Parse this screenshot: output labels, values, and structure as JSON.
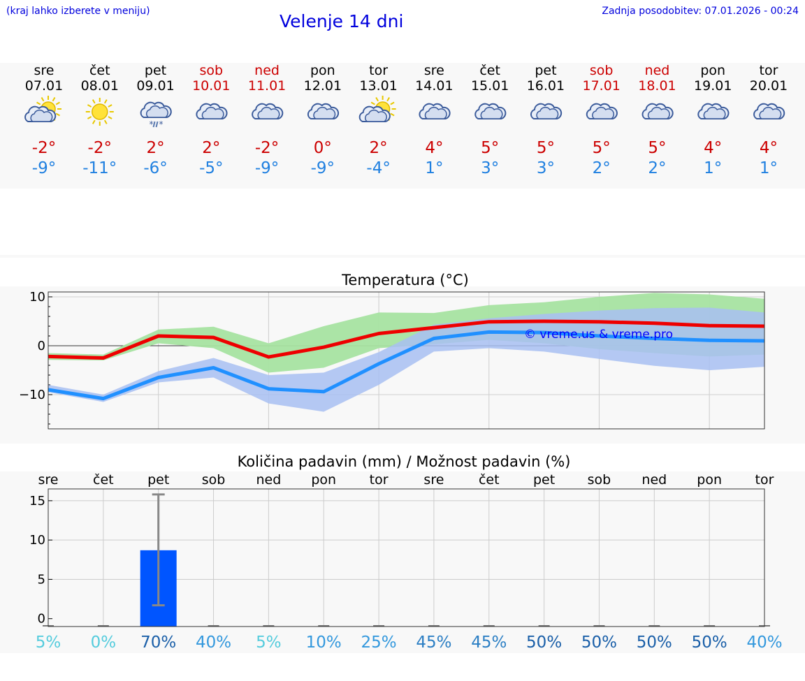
{
  "header": {
    "location_hint": "(kraj lahko izberete v meniju)",
    "title": "Velenje 14 dni",
    "updated": "Zadnja posodobitev: 07.01.2026 - 00:24"
  },
  "days": [
    {
      "name": "sre",
      "date": "07.01",
      "icon": "sun-cloud-icon",
      "tmax": "-2°",
      "tmin": "-9°",
      "weekend": false
    },
    {
      "name": "čet",
      "date": "08.01",
      "icon": "sun-icon",
      "tmax": "-2°",
      "tmin": "-11°",
      "weekend": false
    },
    {
      "name": "pet",
      "date": "09.01",
      "icon": "cloud-snow-icon",
      "tmax": "2°",
      "tmin": "-6°",
      "weekend": false
    },
    {
      "name": "sob",
      "date": "10.01",
      "icon": "cloud-icon",
      "tmax": "2°",
      "tmin": "-5°",
      "weekend": true
    },
    {
      "name": "ned",
      "date": "11.01",
      "icon": "cloud-icon",
      "tmax": "-2°",
      "tmin": "-9°",
      "weekend": true
    },
    {
      "name": "pon",
      "date": "12.01",
      "icon": "cloud-icon",
      "tmax": "0°",
      "tmin": "-9°",
      "weekend": false
    },
    {
      "name": "tor",
      "date": "13.01",
      "icon": "sun-cloud-icon",
      "tmax": "2°",
      "tmin": "-4°",
      "weekend": false
    },
    {
      "name": "sre",
      "date": "14.01",
      "icon": "cloud-icon",
      "tmax": "4°",
      "tmin": "1°",
      "weekend": false
    },
    {
      "name": "čet",
      "date": "15.01",
      "icon": "cloud-icon",
      "tmax": "5°",
      "tmin": "3°",
      "weekend": false
    },
    {
      "name": "pet",
      "date": "16.01",
      "icon": "cloud-icon",
      "tmax": "5°",
      "tmin": "3°",
      "weekend": false
    },
    {
      "name": "sob",
      "date": "17.01",
      "icon": "cloud-icon",
      "tmax": "5°",
      "tmin": "2°",
      "weekend": true
    },
    {
      "name": "ned",
      "date": "18.01",
      "icon": "cloud-icon",
      "tmax": "5°",
      "tmin": "2°",
      "weekend": true
    },
    {
      "name": "pon",
      "date": "19.01",
      "icon": "cloud-icon",
      "tmax": "4°",
      "tmin": "1°",
      "weekend": false
    },
    {
      "name": "tor",
      "date": "20.01",
      "icon": "cloud-icon",
      "tmax": "4°",
      "tmin": "1°",
      "weekend": false
    }
  ],
  "colors": {
    "accent": "#0000dd",
    "weekend": "#cc0000",
    "tmax_line": "#ee0000",
    "tmin_line": "#2090ff",
    "tmax_band": "#a6e3a1",
    "tmin_band": "#a8bff2",
    "overlap_band": "#7fbfa6",
    "precip_bar": "#0055ff"
  },
  "chart_data": [
    {
      "type": "line",
      "title": "Temperatura (°C)",
      "ylim": [
        -17,
        11
      ],
      "yticks": [
        10,
        0,
        -10
      ],
      "watermark": "© vreme.us & vreme.pro",
      "x": [
        0,
        1,
        2,
        3,
        4,
        5,
        6,
        7,
        8,
        9,
        10,
        11,
        12,
        13
      ],
      "series": [
        {
          "name": "tmax",
          "values": [
            -2.2,
            -2.5,
            2,
            1.7,
            -2.3,
            -0.3,
            2.5,
            3.7,
            4.9,
            5.0,
            4.9,
            4.6,
            4.1,
            4.0
          ],
          "band_low": [
            -2.9,
            -3.0,
            0.5,
            -0.5,
            -5.5,
            -4.5,
            -0.5,
            0.3,
            1.2,
            0.5,
            -0.7,
            -1.5,
            -2.2,
            -1.8
          ],
          "band_high": [
            -1.5,
            -1.8,
            3.3,
            3.9,
            0.5,
            4.0,
            6.8,
            6.7,
            8.3,
            8.9,
            10.0,
            10.8,
            10.5,
            9.6
          ]
        },
        {
          "name": "tmin",
          "values": [
            -9.0,
            -10.8,
            -6.5,
            -4.5,
            -8.8,
            -9.4,
            -3.7,
            1.5,
            2.8,
            2.7,
            2.0,
            1.5,
            1.1,
            1.0
          ],
          "band_low": [
            -9.5,
            -11.5,
            -7.5,
            -6.5,
            -11.8,
            -13.5,
            -8.0,
            -1.2,
            -0.5,
            -1.2,
            -2.7,
            -4.1,
            -5.0,
            -4.3
          ],
          "band_high": [
            -8.0,
            -10.0,
            -5.2,
            -2.5,
            -6.0,
            -5.5,
            -1.3,
            4.3,
            5.6,
            6.5,
            7.2,
            7.7,
            7.8,
            6.8
          ]
        }
      ]
    },
    {
      "type": "bar",
      "title": "Količina padavin (mm) / Možnost padavin (%)",
      "ylim": [
        -1,
        16.5
      ],
      "yticks": [
        15,
        10,
        5,
        0
      ],
      "categories": [
        "sre",
        "čet",
        "pet",
        "sob",
        "ned",
        "pon",
        "tor",
        "sre",
        "čet",
        "pet",
        "sob",
        "ned",
        "pon",
        "tor"
      ],
      "values": [
        0,
        0,
        8.7,
        0,
        0,
        0,
        0,
        0,
        0,
        0,
        0,
        0,
        0,
        0
      ],
      "error_low": [
        null,
        null,
        1.7,
        null,
        null,
        null,
        null,
        null,
        null,
        null,
        null,
        null,
        null,
        null
      ],
      "error_high": [
        null,
        null,
        15.8,
        null,
        null,
        null,
        null,
        null,
        null,
        null,
        null,
        null,
        null,
        null
      ],
      "probability": [
        "5%",
        "0%",
        "70%",
        "40%",
        "5%",
        "10%",
        "25%",
        "45%",
        "45%",
        "50%",
        "50%",
        "50%",
        "50%",
        "40%"
      ],
      "probability_colors": [
        "#55ccdd",
        "#55ccdd",
        "#1a5fa8",
        "#3398dd",
        "#55ccdd",
        "#3398dd",
        "#3398dd",
        "#2c7fc4",
        "#2c7fc4",
        "#1a5fa8",
        "#1a5fa8",
        "#1a5fa8",
        "#1a5fa8",
        "#3398dd"
      ]
    }
  ]
}
